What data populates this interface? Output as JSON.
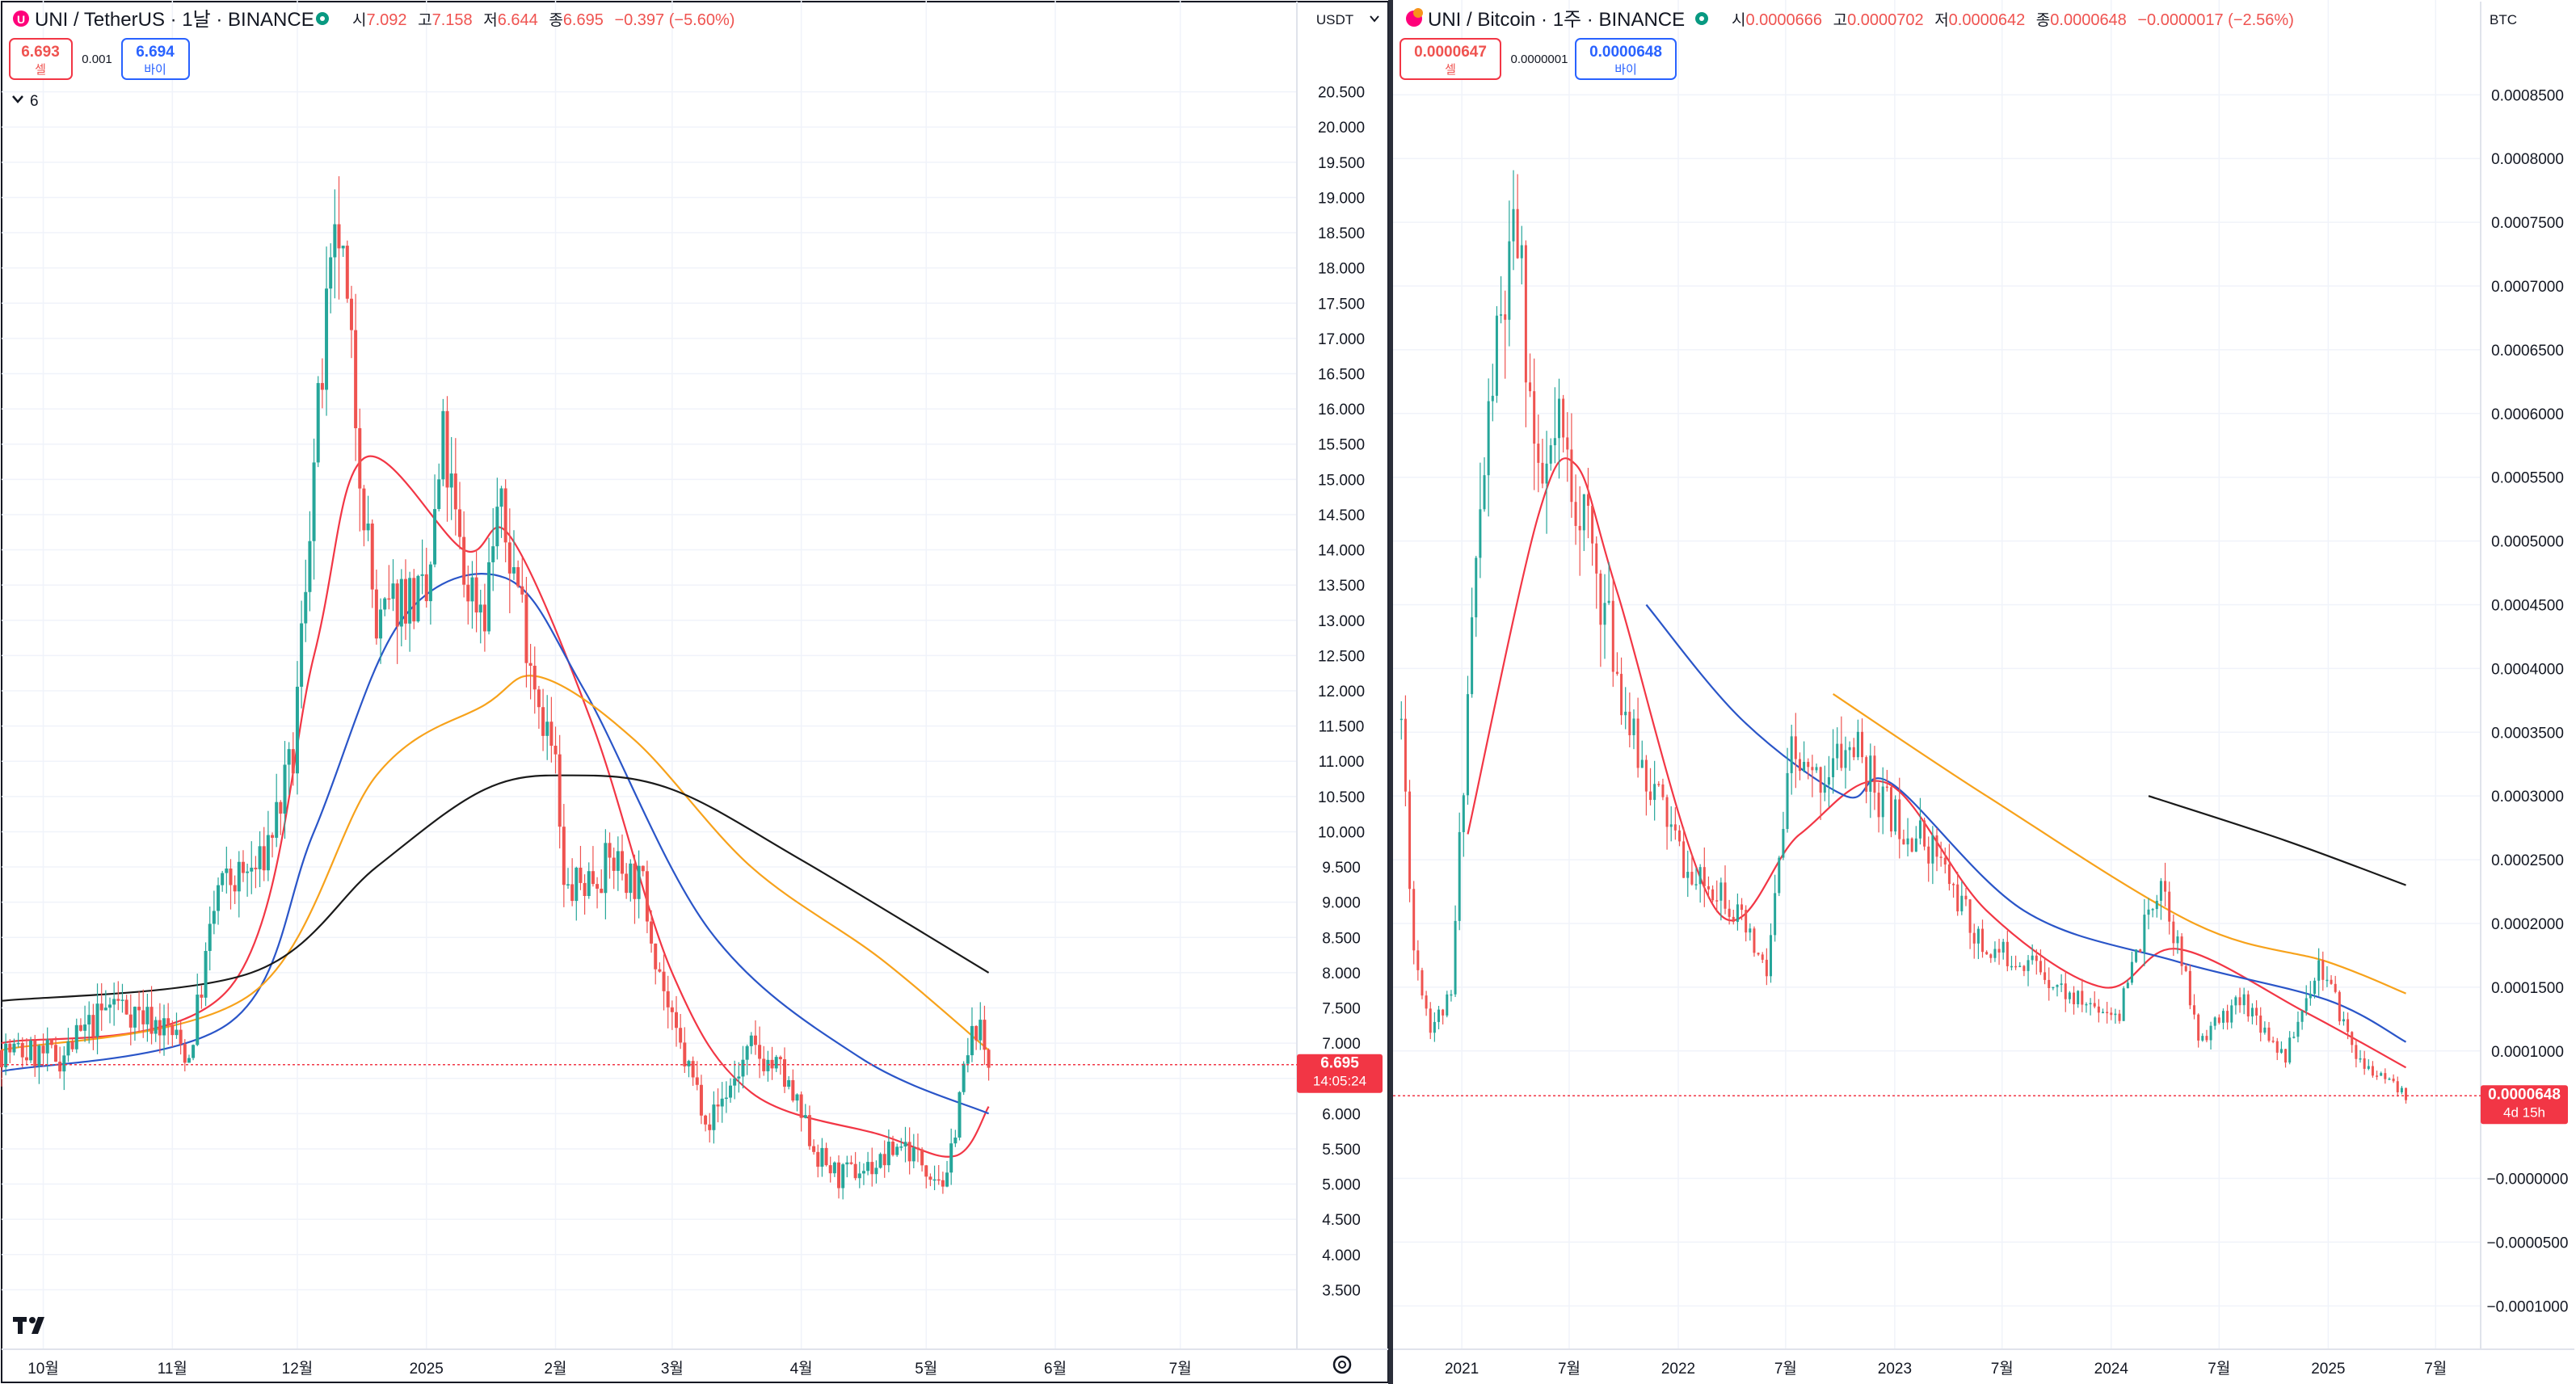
{
  "colors": {
    "up_candle": "#26a69a",
    "down_candle": "#ef5350",
    "ma_red": "#f23645",
    "ma_blue": "#2a55c8",
    "ma_orange": "#f7a21b",
    "ma_black": "#1a1a1a",
    "price_line": "#f23645",
    "sell_box": "#f23645",
    "buy_box": "#2962ff"
  },
  "left": {
    "symbol": "UNI / TetherUS · 1날 · BINANCE",
    "icon": "uni-coin-icon",
    "ohlc": {
      "open_label": "시",
      "open": "7.092",
      "high_label": "고",
      "high": "7.158",
      "low_label": "저",
      "low": "6.644",
      "close_label": "종",
      "close": "6.695",
      "change": "−0.397 (−5.60%)"
    },
    "sell": {
      "price": "6.693",
      "label": "셀"
    },
    "spread": "0.001",
    "buy": {
      "price": "6.694",
      "label": "바이"
    },
    "indicator_toggle": "6",
    "currency": "USDT",
    "price_axis": [
      "20.500",
      "20.000",
      "19.500",
      "19.000",
      "18.500",
      "18.000",
      "17.500",
      "17.000",
      "16.500",
      "16.000",
      "15.500",
      "15.000",
      "14.500",
      "14.000",
      "13.500",
      "13.000",
      "12.500",
      "12.000",
      "11.500",
      "11.000",
      "10.500",
      "10.000",
      "9.500",
      "9.000",
      "8.500",
      "8.000",
      "7.500",
      "7.000",
      "6.500",
      "6.000",
      "5.500",
      "5.000",
      "4.500",
      "4.000",
      "3.500"
    ],
    "time_axis": [
      "10월",
      "11월",
      "12월",
      "2025",
      "2월",
      "3월",
      "4월",
      "5월",
      "6월",
      "7월"
    ],
    "last_price": "6.695",
    "countdown": "14:05:24",
    "logo": "tradingview-logo"
  },
  "right": {
    "symbol": "UNI / Bitcoin · 1주 · BINANCE",
    "icon": "uni-coin-icon",
    "ohlc": {
      "open_label": "시",
      "open": "0.0000666",
      "high_label": "고",
      "high": "0.0000702",
      "low_label": "저",
      "low": "0.0000642",
      "close_label": "종",
      "close": "0.0000648",
      "change": "−0.0000017 (−2.56%)"
    },
    "sell": {
      "price": "0.0000647",
      "label": "셀"
    },
    "spread": "0.0000001",
    "buy": {
      "price": "0.0000648",
      "label": "바이"
    },
    "currency": "BTC",
    "price_axis": [
      "0.0008500",
      "0.0008000",
      "0.0007500",
      "0.0007000",
      "0.0006500",
      "0.0006000",
      "0.0005500",
      "0.0005000",
      "0.0004500",
      "0.0004000",
      "0.0003500",
      "0.0003000",
      "0.0002500",
      "0.0002000",
      "0.0001500",
      "0.0001000",
      "−0.0000000",
      "−0.0000500",
      "−0.0001000"
    ],
    "time_axis": [
      "2021",
      "7월",
      "2022",
      "7월",
      "2023",
      "7월",
      "2024",
      "7월",
      "2025",
      "7월"
    ],
    "last_price": "0.0000648",
    "countdown": "4d 15h"
  },
  "chart_data": [
    {
      "type": "candlestick",
      "title": "UNI / TetherUS · 1날 · BINANCE",
      "x_unit": "day",
      "x_range": [
        "2024-09-21",
        "2025-07-29"
      ],
      "ylim": [
        3.0,
        21.0
      ],
      "grid": true,
      "close_path": [
        [
          "2024-09-21",
          6.9
        ],
        [
          "2024-10-05",
          6.8
        ],
        [
          "2024-10-18",
          7.6
        ],
        [
          "2024-10-31",
          7.2
        ],
        [
          "2024-11-05",
          6.8
        ],
        [
          "2024-11-12",
          9.2
        ],
        [
          "2024-11-22",
          9.5
        ],
        [
          "2024-11-30",
          11.0
        ],
        [
          "2024-12-04",
          14.5
        ],
        [
          "2024-12-08",
          17.2
        ],
        [
          "2024-12-11",
          18.5
        ],
        [
          "2024-12-15",
          16.0
        ],
        [
          "2024-12-20",
          12.8
        ],
        [
          "2024-12-26",
          13.4
        ],
        [
          "2025-01-01",
          13.2
        ],
        [
          "2025-01-05",
          15.5
        ],
        [
          "2025-01-10",
          13.6
        ],
        [
          "2025-01-15",
          13.2
        ],
        [
          "2025-01-18",
          14.6
        ],
        [
          "2025-01-23",
          13.5
        ],
        [
          "2025-01-27",
          12.2
        ],
        [
          "2025-02-01",
          10.9
        ],
        [
          "2025-02-03",
          9.1
        ],
        [
          "2025-02-08",
          9.3
        ],
        [
          "2025-02-15",
          9.6
        ],
        [
          "2025-02-22",
          9.2
        ],
        [
          "2025-03-01",
          7.2
        ],
        [
          "2025-03-10",
          5.9
        ],
        [
          "2025-03-20",
          6.9
        ],
        [
          "2025-03-27",
          6.6
        ],
        [
          "2025-04-05",
          5.4
        ],
        [
          "2025-04-10",
          5.1
        ],
        [
          "2025-04-20",
          5.3
        ],
        [
          "2025-04-25",
          5.6
        ],
        [
          "2025-05-06",
          5.0
        ],
        [
          "2025-05-09",
          6.3
        ],
        [
          "2025-05-13",
          7.3
        ],
        [
          "2025-05-16",
          6.7
        ]
      ],
      "moving_averages": [
        {
          "color": "#f23645",
          "points": [
            [
              "2024-09-21",
              7.0
            ],
            [
              "2024-11-15",
              7.8
            ],
            [
              "2024-12-05",
              12.5
            ],
            [
              "2024-12-17",
              15.3
            ],
            [
              "2025-01-10",
              14.0
            ],
            [
              "2025-01-21",
              14.2
            ],
            [
              "2025-02-10",
              11.5
            ],
            [
              "2025-03-01",
              8.0
            ],
            [
              "2025-03-20",
              6.3
            ],
            [
              "2025-04-20",
              5.7
            ],
            [
              "2025-05-08",
              5.4
            ],
            [
              "2025-05-16",
              6.1
            ]
          ]
        },
        {
          "color": "#2a55c8",
          "points": [
            [
              "2024-09-21",
              6.6
            ],
            [
              "2024-11-15",
              7.3
            ],
            [
              "2024-12-05",
              10.0
            ],
            [
              "2024-12-26",
              13.0
            ],
            [
              "2025-01-20",
              13.6
            ],
            [
              "2025-02-08",
              12.0
            ],
            [
              "2025-03-10",
              8.6
            ],
            [
              "2025-04-15",
              6.8
            ],
            [
              "2025-05-16",
              6.0
            ]
          ]
        },
        {
          "color": "#f7a21b",
          "points": [
            [
              "2024-09-21",
              6.9
            ],
            [
              "2024-11-20",
              7.7
            ],
            [
              "2024-12-20",
              10.8
            ],
            [
              "2025-01-15",
              11.8
            ],
            [
              "2025-01-28",
              12.2
            ],
            [
              "2025-02-20",
              11.3
            ],
            [
              "2025-03-20",
              9.5
            ],
            [
              "2025-04-20",
              8.2
            ],
            [
              "2025-05-16",
              6.9
            ]
          ]
        },
        {
          "color": "#1a1a1a",
          "points": [
            [
              "2024-09-21",
              7.6
            ],
            [
              "2024-11-20",
              8.0
            ],
            [
              "2024-12-20",
              9.5
            ],
            [
              "2025-01-15",
              10.6
            ],
            [
              "2025-02-05",
              10.8
            ],
            [
              "2025-03-01",
              10.6
            ],
            [
              "2025-04-01",
              9.6
            ],
            [
              "2025-05-16",
              8.0
            ]
          ]
        }
      ]
    },
    {
      "type": "candlestick",
      "title": "UNI / Bitcoin · 1주 · BINANCE",
      "x_unit": "week",
      "x_range": [
        "2020-09-07",
        "2025-09-15"
      ],
      "ylim": [
        -0.000115,
        0.00088
      ],
      "grid": true,
      "close_path": [
        [
          "2020-09-21",
          0.00036
        ],
        [
          "2020-10-12",
          0.00018
        ],
        [
          "2020-11-09",
          0.00012
        ],
        [
          "2020-12-14",
          0.00014
        ],
        [
          "2021-01-18",
          0.00044
        ],
        [
          "2021-02-22",
          0.00063
        ],
        [
          "2021-04-05",
          0.00074
        ],
        [
          "2021-05-10",
          0.00053
        ],
        [
          "2021-06-14",
          0.00058
        ],
        [
          "2021-07-26",
          0.00052
        ],
        [
          "2021-09-06",
          0.00043
        ],
        [
          "2021-10-18",
          0.00034
        ],
        [
          "2021-12-06",
          0.00029
        ],
        [
          "2022-01-24",
          0.00023
        ],
        [
          "2022-03-14",
          0.00023
        ],
        [
          "2022-05-30",
          0.00016
        ],
        [
          "2022-07-11",
          0.00033
        ],
        [
          "2022-08-15",
          0.00031
        ],
        [
          "2022-10-24",
          0.00034
        ],
        [
          "2022-12-19",
          0.00029
        ],
        [
          "2023-03-06",
          0.00026
        ],
        [
          "2023-05-29",
          0.00018
        ],
        [
          "2023-08-21",
          0.00017
        ],
        [
          "2023-10-30",
          0.00014
        ],
        [
          "2024-01-15",
          0.00013
        ],
        [
          "2024-03-25",
          0.00024
        ],
        [
          "2024-05-27",
          0.00011
        ],
        [
          "2024-08-12",
          0.00014
        ],
        [
          "2024-10-21",
          9.5e-05
        ],
        [
          "2024-12-16",
          0.00017
        ],
        [
          "2025-02-24",
          9e-05
        ],
        [
          "2025-05-12",
          6.48e-05
        ]
      ],
      "moving_averages": [
        {
          "color": "#f23645",
          "points": [
            [
              "2021-01-11",
              0.00027
            ],
            [
              "2021-05-10",
              0.00052
            ],
            [
              "2021-07-12",
              0.00056
            ],
            [
              "2021-09-20",
              0.00046
            ],
            [
              "2022-03-07",
              0.00021
            ],
            [
              "2022-07-25",
              0.00027
            ],
            [
              "2022-12-19",
              0.00031
            ],
            [
              "2023-06-05",
              0.00021
            ],
            [
              "2023-12-18",
              0.00015
            ],
            [
              "2024-04-22",
              0.00018
            ],
            [
              "2024-11-25",
              0.00013
            ],
            [
              "2025-05-12",
              8.7e-05
            ]
          ]
        },
        {
          "color": "#2a55c8",
          "points": [
            [
              "2021-11-08",
              0.00045
            ],
            [
              "2022-04-18",
              0.00036
            ],
            [
              "2022-10-10",
              0.0003
            ],
            [
              "2022-12-26",
              0.00031
            ],
            [
              "2023-08-07",
              0.00021
            ],
            [
              "2024-04-22",
              0.00017
            ],
            [
              "2024-12-30",
              0.00014
            ],
            [
              "2025-05-12",
              0.000107
            ]
          ]
        },
        {
          "color": "#f7a21b",
          "points": [
            [
              "2022-09-19",
              0.00038
            ],
            [
              "2023-06-05",
              0.0003
            ],
            [
              "2024-05-20",
              0.0002
            ],
            [
              "2024-12-30",
              0.00017
            ],
            [
              "2025-05-12",
              0.000145
            ]
          ]
        },
        {
          "color": "#1a1a1a",
          "points": [
            [
              "2024-03-04",
              0.0003
            ],
            [
              "2024-10-21",
              0.000265
            ],
            [
              "2025-05-12",
              0.00023
            ]
          ]
        }
      ]
    }
  ]
}
